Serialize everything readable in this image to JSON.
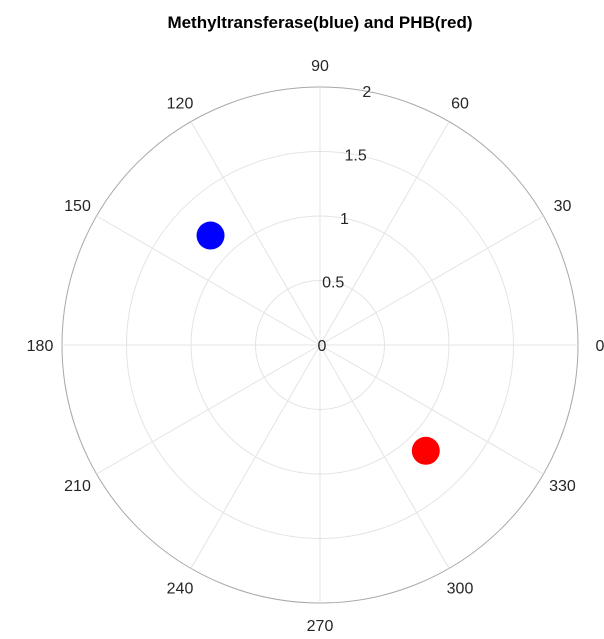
{
  "chart_data": {
    "type": "scatter",
    "projection": "polar",
    "title": "Methyltransferase(blue) and PHB(red)",
    "angle_ticks": [
      "0",
      "30",
      "60",
      "90",
      "120",
      "150",
      "180",
      "210",
      "240",
      "270",
      "300",
      "330"
    ],
    "radial_ticks": [
      "0",
      "0.5",
      "1",
      "1.5",
      "2"
    ],
    "rlim": [
      0,
      2
    ],
    "grid": true,
    "series": [
      {
        "theta": 135,
        "r": 1.2,
        "color": "#0000ff"
      },
      {
        "theta": 315,
        "r": 1.16,
        "color": "#ff0000"
      }
    ]
  }
}
